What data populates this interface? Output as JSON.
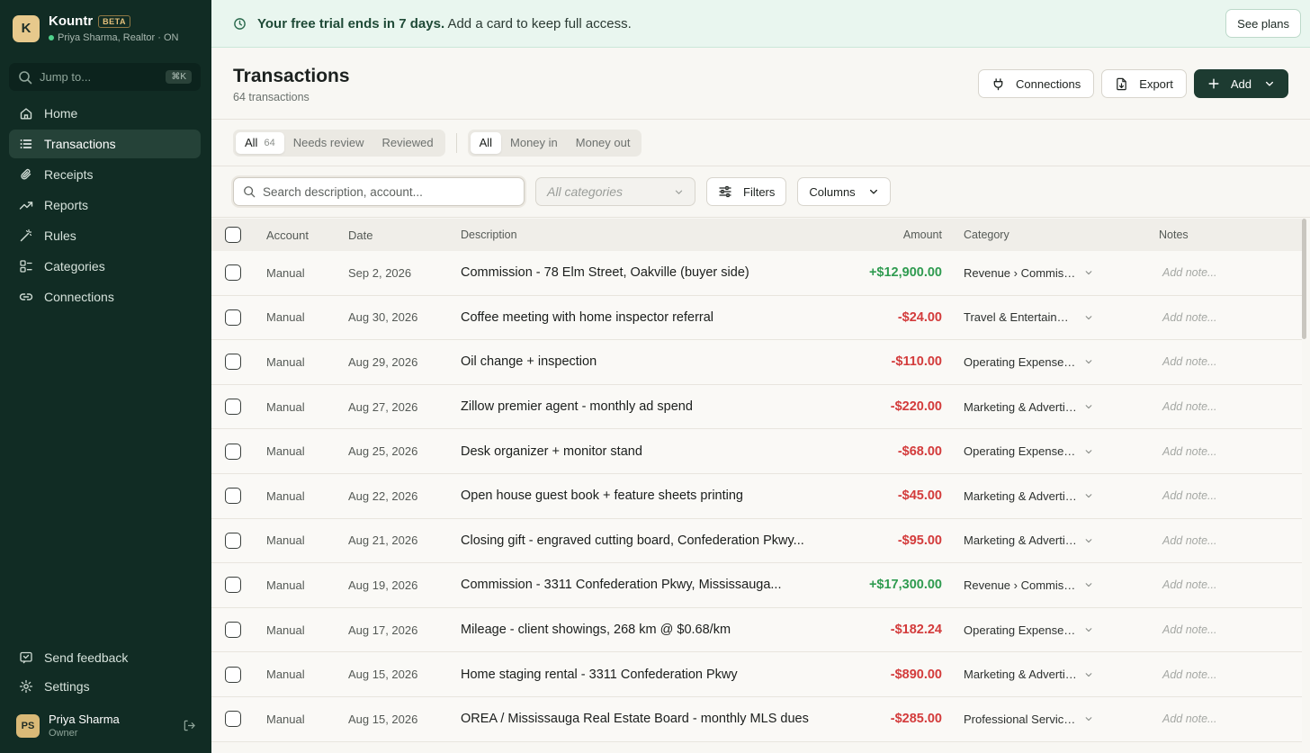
{
  "app": {
    "logo_letter": "K",
    "name": "Kountr",
    "badge": "BETA",
    "user_line": "Priya Sharma, Realtor · ON",
    "status_color": "#4fd18b"
  },
  "jump": {
    "placeholder": "Jump to...",
    "shortcut": "⌘K"
  },
  "nav": {
    "items": [
      {
        "label": "Home",
        "icon": "home-icon"
      },
      {
        "label": "Transactions",
        "icon": "list-icon",
        "active": true
      },
      {
        "label": "Receipts",
        "icon": "paperclip-icon"
      },
      {
        "label": "Reports",
        "icon": "trend-icon"
      },
      {
        "label": "Rules",
        "icon": "wand-icon"
      },
      {
        "label": "Categories",
        "icon": "category-icon"
      },
      {
        "label": "Connections",
        "icon": "link-icon"
      }
    ],
    "feedback": "Send feedback",
    "settings": "Settings"
  },
  "profile": {
    "initials": "PS",
    "name": "Priya Sharma",
    "role": "Owner"
  },
  "banner": {
    "bold": "Your free trial ends in 7 days.",
    "text": " Add a card to keep full access.",
    "button": "See plans"
  },
  "header": {
    "title": "Transactions",
    "subtitle": "64 transactions",
    "connections": "Connections",
    "export": "Export",
    "add": "Add"
  },
  "tabs": {
    "review": [
      {
        "label": "All",
        "count": "64",
        "active": true
      },
      {
        "label": "Needs review"
      },
      {
        "label": "Reviewed"
      }
    ],
    "direction": [
      {
        "label": "All",
        "active": true
      },
      {
        "label": "Money in"
      },
      {
        "label": "Money out"
      }
    ]
  },
  "filters": {
    "search_placeholder": "Search description, account...",
    "category_placeholder": "All categories",
    "filters_label": "Filters",
    "columns_label": "Columns"
  },
  "table": {
    "headers": {
      "account": "Account",
      "date": "Date",
      "description": "Description",
      "amount": "Amount",
      "category": "Category",
      "notes": "Notes"
    },
    "note_placeholder": "Add note...",
    "rows": [
      {
        "account": "Manual",
        "date": "Sep 2, 2026",
        "description": "Commission - 78 Elm Street, Oakville (buyer side)",
        "amount": "+$12,900.00",
        "positive": true,
        "category": "Revenue › Commission"
      },
      {
        "account": "Manual",
        "date": "Aug 30, 2026",
        "description": "Coffee meeting with home inspector referral",
        "amount": "-$24.00",
        "positive": false,
        "category": "Travel & Entertainment"
      },
      {
        "account": "Manual",
        "date": "Aug 29, 2026",
        "description": "Oil change + inspection",
        "amount": "-$110.00",
        "positive": false,
        "category": "Operating Expenses › Vehicle"
      },
      {
        "account": "Manual",
        "date": "Aug 27, 2026",
        "description": "Zillow premier agent - monthly ad spend",
        "amount": "-$220.00",
        "positive": false,
        "category": "Marketing & Advertising"
      },
      {
        "account": "Manual",
        "date": "Aug 25, 2026",
        "description": "Desk organizer + monitor stand",
        "amount": "-$68.00",
        "positive": false,
        "category": "Operating Expenses › Office"
      },
      {
        "account": "Manual",
        "date": "Aug 22, 2026",
        "description": "Open house guest book + feature sheets printing",
        "amount": "-$45.00",
        "positive": false,
        "category": "Marketing & Advertising"
      },
      {
        "account": "Manual",
        "date": "Aug 21, 2026",
        "description": "Closing gift - engraved cutting board, Confederation Pkwy...",
        "amount": "-$95.00",
        "positive": false,
        "category": "Marketing & Advertising"
      },
      {
        "account": "Manual",
        "date": "Aug 19, 2026",
        "description": "Commission - 3311 Confederation Pkwy, Mississauga...",
        "amount": "+$17,300.00",
        "positive": true,
        "category": "Revenue › Commission"
      },
      {
        "account": "Manual",
        "date": "Aug 17, 2026",
        "description": "Mileage - client showings, 268 km @ $0.68/km",
        "amount": "-$182.24",
        "positive": false,
        "category": "Operating Expenses › Vehicle"
      },
      {
        "account": "Manual",
        "date": "Aug 15, 2026",
        "description": "Home staging rental - 3311 Confederation Pkwy",
        "amount": "-$890.00",
        "positive": false,
        "category": "Marketing & Advertising"
      },
      {
        "account": "Manual",
        "date": "Aug 15, 2026",
        "description": "OREA / Mississauga Real Estate Board - monthly MLS dues",
        "amount": "-$285.00",
        "positive": false,
        "category": "Professional Services & Dues"
      }
    ]
  }
}
